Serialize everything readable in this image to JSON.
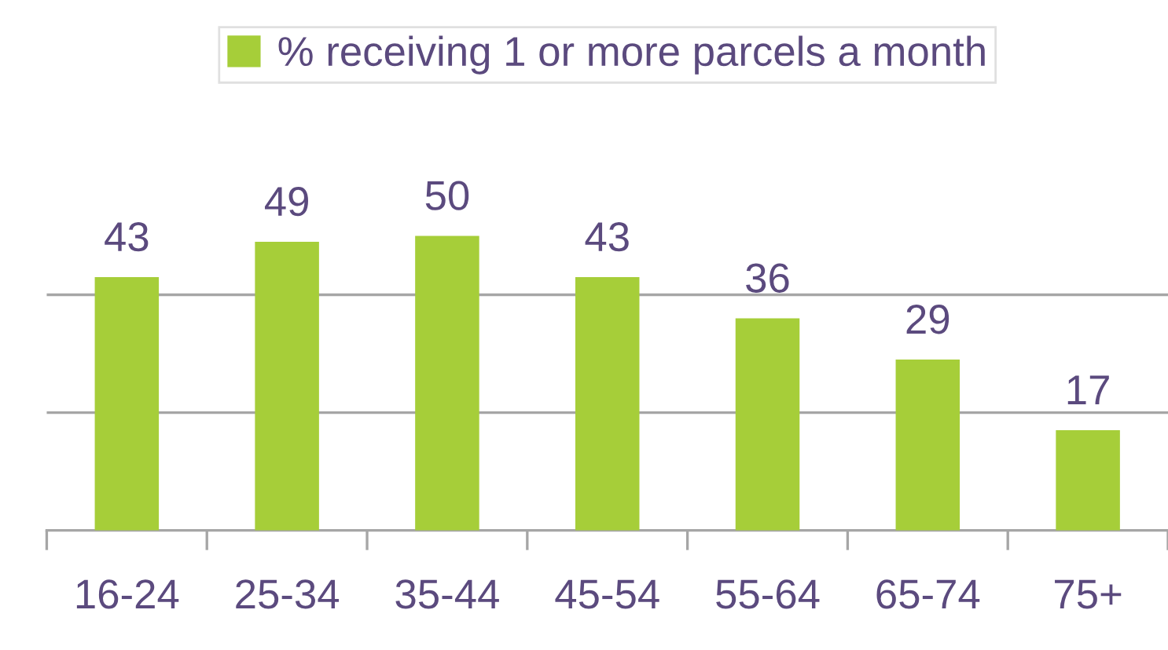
{
  "chart_data": {
    "type": "bar",
    "categories": [
      "16-24",
      "25-34",
      "35-44",
      "45-54",
      "55-64",
      "65-74",
      "75+"
    ],
    "series": [
      {
        "name": "% receiving 1 or more parcels a month",
        "color": "#a6ce39",
        "values": [
          43,
          49,
          50,
          43,
          36,
          29,
          17
        ]
      }
    ],
    "data_labels": true,
    "ref_lines": [
      {
        "axis": "y",
        "value": 20,
        "label": null,
        "color": "#a6a6a6"
      },
      {
        "axis": "y",
        "value": 40,
        "label": null,
        "color": "#a6a6a6"
      }
    ],
    "legend": "top",
    "tick_labels": "x"
  }
}
